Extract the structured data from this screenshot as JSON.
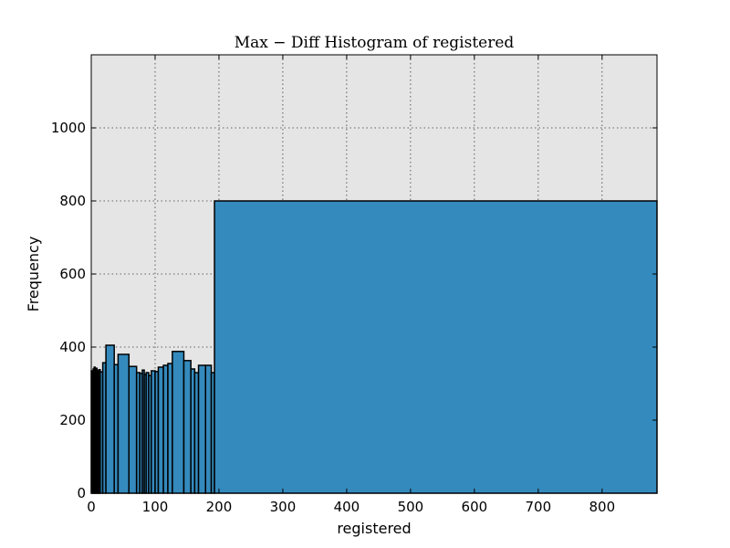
{
  "chart_data": {
    "type": "bar",
    "title": "Max − Diff Histogram of registered",
    "xlabel": "registered",
    "ylabel": "Frequency",
    "xlim": [
      0,
      886
    ],
    "ylim": [
      0,
      1200
    ],
    "xticks": [
      0,
      100,
      200,
      300,
      400,
      500,
      600,
      700,
      800
    ],
    "yticks": [
      0,
      200,
      400,
      600,
      800,
      1000
    ],
    "grid": true,
    "bar_color": "#348abd",
    "plot_background": "#e5e5e5",
    "bins": [
      {
        "x0": 0,
        "x1": 1.5,
        "value": 335
      },
      {
        "x0": 1.5,
        "x1": 3,
        "value": 330
      },
      {
        "x0": 3,
        "x1": 4.5,
        "value": 340
      },
      {
        "x0": 4.5,
        "x1": 6,
        "value": 345
      },
      {
        "x0": 6,
        "x1": 7.5,
        "value": 335
      },
      {
        "x0": 7.5,
        "x1": 9,
        "value": 342
      },
      {
        "x0": 9,
        "x1": 10.5,
        "value": 336
      },
      {
        "x0": 10.5,
        "x1": 12,
        "value": 330
      },
      {
        "x0": 12,
        "x1": 14,
        "value": 338
      },
      {
        "x0": 14,
        "x1": 18,
        "value": 332
      },
      {
        "x0": 18,
        "x1": 23,
        "value": 357
      },
      {
        "x0": 23,
        "x1": 36,
        "value": 405
      },
      {
        "x0": 36,
        "x1": 42,
        "value": 352
      },
      {
        "x0": 42,
        "x1": 59,
        "value": 380
      },
      {
        "x0": 59,
        "x1": 71,
        "value": 347
      },
      {
        "x0": 71,
        "x1": 76,
        "value": 330
      },
      {
        "x0": 76,
        "x1": 80,
        "value": 328
      },
      {
        "x0": 80,
        "x1": 83,
        "value": 337
      },
      {
        "x0": 83,
        "x1": 86,
        "value": 325
      },
      {
        "x0": 86,
        "x1": 90,
        "value": 330
      },
      {
        "x0": 90,
        "x1": 94,
        "value": 322
      },
      {
        "x0": 94,
        "x1": 100,
        "value": 335
      },
      {
        "x0": 100,
        "x1": 105,
        "value": 333
      },
      {
        "x0": 105,
        "x1": 113,
        "value": 345
      },
      {
        "x0": 113,
        "x1": 120,
        "value": 350
      },
      {
        "x0": 120,
        "x1": 127,
        "value": 355
      },
      {
        "x0": 127,
        "x1": 145,
        "value": 388
      },
      {
        "x0": 145,
        "x1": 156,
        "value": 363
      },
      {
        "x0": 156,
        "x1": 162,
        "value": 340
      },
      {
        "x0": 162,
        "x1": 168,
        "value": 330
      },
      {
        "x0": 168,
        "x1": 179,
        "value": 350
      },
      {
        "x0": 179,
        "x1": 188,
        "value": 350
      },
      {
        "x0": 188,
        "x1": 193,
        "value": 330
      },
      {
        "x0": 193,
        "x1": 886,
        "value": 800
      }
    ]
  }
}
